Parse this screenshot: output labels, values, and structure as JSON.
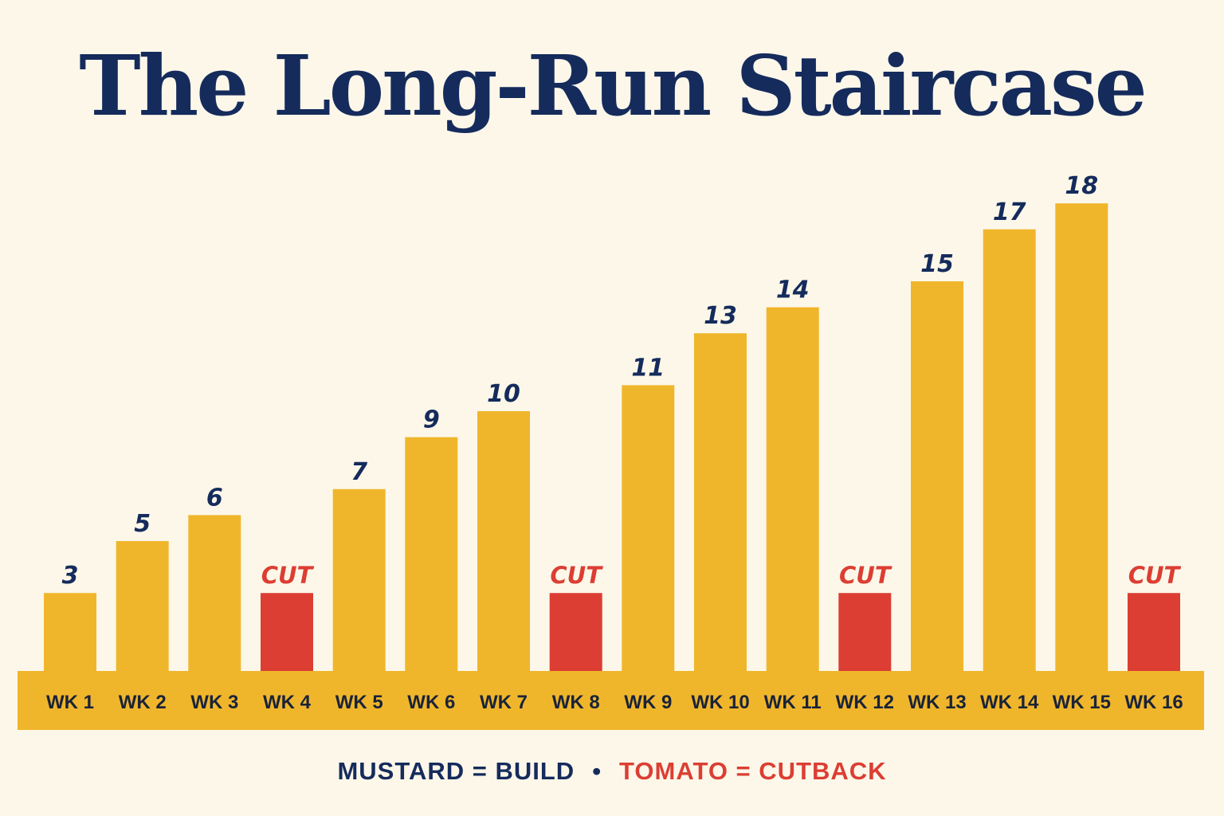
{
  "title": "The Long-Run Staircase",
  "colors": {
    "background": "#fcf7e9",
    "build": "#f0b62b",
    "cutback": "#dc3e33",
    "navy": "#152b5c",
    "baseline_band": "#f0b62b"
  },
  "legend": {
    "build": "MUSTARD = BUILD",
    "separator": "•",
    "cutback": "TOMATO = CUTBACK"
  },
  "chart_data": {
    "type": "bar",
    "categories": [
      "WK 1",
      "WK 2",
      "WK 3",
      "WK 4",
      "WK 5",
      "WK 6",
      "WK 7",
      "WK 8",
      "WK 9",
      "WK 10",
      "WK 11",
      "WK 12",
      "WK 13",
      "WK 14",
      "WK 15",
      "WK 16"
    ],
    "values": [
      3,
      5,
      6,
      3,
      7,
      9,
      10,
      3,
      11,
      13,
      14,
      3,
      15,
      17,
      18,
      3
    ],
    "bar_types": [
      "build",
      "build",
      "build",
      "cutback",
      "build",
      "build",
      "build",
      "cutback",
      "build",
      "build",
      "build",
      "cutback",
      "build",
      "build",
      "build",
      "cutback"
    ],
    "data_labels": [
      "3",
      "5",
      "6",
      "CUT",
      "7",
      "9",
      "10",
      "CUT",
      "11",
      "13",
      "14",
      "CUT",
      "15",
      "17",
      "18",
      "CUT"
    ],
    "title": "The Long-Run Staircase",
    "xlabel": "",
    "ylabel": "",
    "ylim": [
      0,
      18
    ],
    "grid": false,
    "legend_position": "bottom-center"
  }
}
